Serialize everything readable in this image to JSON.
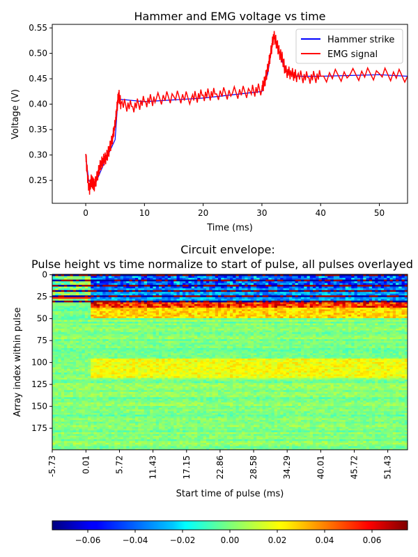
{
  "chart_data": [
    {
      "type": "line",
      "title": "Hammer and EMG voltage vs time",
      "xlabel": "Time (ms)",
      "ylabel": "Voltage (V)",
      "xlim": [
        -5.7,
        54.8
      ],
      "ylim": [
        0.205,
        0.557
      ],
      "xticks": [
        "0",
        "10",
        "20",
        "30",
        "40",
        "50"
      ],
      "yticks": [
        "0.25",
        "0.30",
        "0.35",
        "0.40",
        "0.45",
        "0.50",
        "0.55"
      ],
      "legend_position": "top-right",
      "series": [
        {
          "name": "Hammer strike",
          "color": "#0000ff",
          "x": [
            0,
            0.5,
            1.5,
            3,
            5,
            5.5,
            10,
            20,
            30,
            31,
            32,
            34,
            36,
            40,
            50,
            54.8
          ],
          "y": [
            0.3,
            0.25,
            0.24,
            0.28,
            0.33,
            0.41,
            0.405,
            0.412,
            0.425,
            0.46,
            0.535,
            0.465,
            0.455,
            0.455,
            0.458,
            0.455
          ]
        },
        {
          "name": "EMG signal",
          "color": "#ff0000",
          "x": [
            0,
            0.3,
            0.6,
            0.9,
            1.2,
            1.5,
            2.0,
            2.5,
            3.0,
            3.5,
            4.0,
            4.5,
            5.0,
            5.3,
            5.6,
            6,
            8,
            10,
            12,
            15,
            18,
            20,
            22,
            25,
            28,
            30,
            30.5,
            31,
            31.5,
            32,
            32.5,
            33,
            33.5,
            34,
            35,
            36,
            38,
            40,
            45,
            50,
            54.8
          ],
          "y": [
            0.3,
            0.26,
            0.23,
            0.25,
            0.245,
            0.24,
            0.26,
            0.28,
            0.29,
            0.295,
            0.31,
            0.33,
            0.36,
            0.39,
            0.42,
            0.4,
            0.395,
            0.405,
            0.41,
            0.415,
            0.412,
            0.418,
            0.42,
            0.422,
            0.425,
            0.43,
            0.445,
            0.47,
            0.5,
            0.535,
            0.52,
            0.5,
            0.49,
            0.465,
            0.46,
            0.455,
            0.452,
            0.455,
            0.458,
            0.46,
            0.455
          ]
        }
      ]
    },
    {
      "type": "heatmap",
      "title_line1": "Circuit envelope:",
      "title_line2": "Pulse height vs time normalize to start of pulse, all pulses overlayed",
      "xlabel": "Start time of pulse (ms)",
      "ylabel": "Array index within pulse",
      "xticks": [
        "-5.73",
        "0.01",
        "5.72",
        "11.43",
        "17.15",
        "22.86",
        "28.58",
        "34.29",
        "40.01",
        "45.72",
        "51.43"
      ],
      "yticks": [
        "0",
        "25",
        "50",
        "75",
        "100",
        "125",
        "150",
        "175"
      ],
      "xrange": [
        -5.73,
        54.8
      ],
      "yrange": [
        0,
        199
      ],
      "colormap": "jet",
      "colorbar": {
        "range": [
          -0.075,
          0.075
        ],
        "ticks": [
          "−0.06",
          "−0.04",
          "−0.02",
          "0.00",
          "0.02",
          "0.04",
          "0.06"
        ]
      }
    }
  ]
}
